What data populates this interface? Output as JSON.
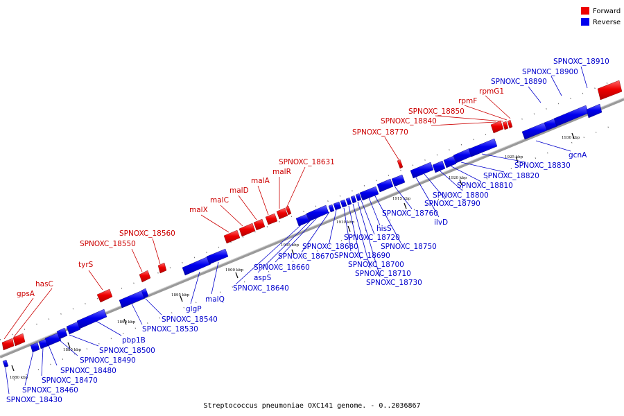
{
  "caption": "Streptococcus pneumoniae OXC141 genome. - 0..2036867",
  "legend": [
    {
      "label": "Forward",
      "color": "#ee0000"
    },
    {
      "label": "Reverse",
      "color": "#0000ee"
    }
  ],
  "ticks": [
    "1880 kbp",
    "1885 kbp",
    "1890 kbp",
    "1895 kbp",
    "1900 kbp",
    "1905 kbp",
    "1910 kbp",
    "1915 kbp",
    "1920 kbp",
    "1925 kbp",
    "1930 kbp"
  ],
  "forward_genes": [
    "gpsA",
    "hasC",
    "tyrS",
    "SPNOXC_18550",
    "SPNOXC_18560",
    "malX",
    "malC",
    "malD",
    "malA",
    "malR",
    "SPNOXC_18631",
    "SPNOXC_18770",
    "SPNOXC_18840",
    "SPNOXC_18850",
    "rpmF",
    "rpmG1"
  ],
  "reverse_genes": [
    "SPNOXC_18430",
    "SPNOXC_18460",
    "SPNOXC_18470",
    "SPNOXC_18480",
    "SPNOXC_18490",
    "SPNOXC_18500",
    "pbp1B",
    "SPNOXC_18530",
    "SPNOXC_18540",
    "glgP",
    "malQ",
    "SPNOXC_18640",
    "aspS",
    "SPNOXC_18660",
    "SPNOXC_18670",
    "SPNOXC_18680",
    "SPNOXC_18690",
    "SPNOXC_18700",
    "SPNOXC_18710",
    "SPNOXC_18730",
    "SPNOXC_18720",
    "hisS",
    "SPNOXC_18750",
    "SPNOXC_18760",
    "ilvD",
    "SPNOXC_18790",
    "SPNOXC_18800",
    "SPNOXC_18810",
    "SPNOXC_18820",
    "SPNOXC_18830",
    "gcnA",
    "SPNOXC_18890",
    "SPNOXC_18900",
    "SPNOXC_18910"
  ]
}
